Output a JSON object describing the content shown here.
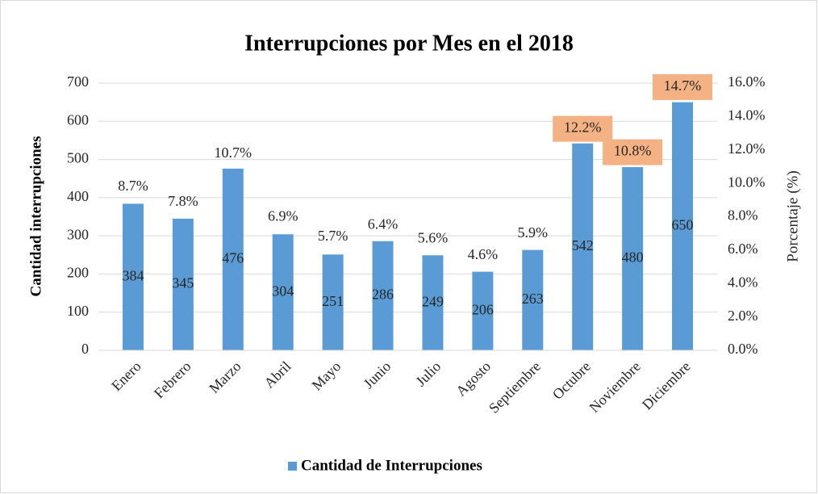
{
  "chart_data": {
    "type": "bar",
    "title": "Interrupciones por Mes en el 2018",
    "categories": [
      "Enero",
      "Febrero",
      "Marzo",
      "Abril",
      "Mayo",
      "Junio",
      "Julio",
      "Agosto",
      "Septiembre",
      "Octubre",
      "Noviembre",
      "Diciembre"
    ],
    "series": [
      {
        "name": "Cantidad de Interrupciones",
        "color": "#5b9bd5",
        "values": [
          384,
          345,
          476,
          304,
          251,
          286,
          249,
          206,
          263,
          542,
          480,
          650
        ]
      },
      {
        "axis": "y2",
        "values": [
          8.7,
          7.8,
          10.7,
          6.9,
          5.7,
          6.4,
          5.6,
          4.6,
          5.9,
          12.2,
          10.8,
          14.7
        ],
        "value_labels": [
          "8.7%",
          "7.8%",
          "10.7%",
          "6.9%",
          "5.7%",
          "6.4%",
          "5.6%",
          "4.6%",
          "5.9%",
          "12.2%",
          "10.8%",
          "14.7%"
        ],
        "highlight": [
          false,
          false,
          false,
          false,
          false,
          false,
          false,
          false,
          false,
          true,
          true,
          true
        ],
        "highlight_color": "#f4b183"
      }
    ],
    "ylabel": "Cantidad interrupciones",
    "y2label": "Porcentaje (%)",
    "ylim": [
      0,
      700
    ],
    "yticks": [
      0,
      100,
      200,
      300,
      400,
      500,
      600,
      700
    ],
    "y2lim": [
      0,
      16
    ],
    "y2ticks": [
      {
        "value": 0,
        "label": "0.0%"
      },
      {
        "value": 2,
        "label": "2.0%"
      },
      {
        "value": 4,
        "label": "4.0%"
      },
      {
        "value": 6,
        "label": "6.0%"
      },
      {
        "value": 8,
        "label": "8.0%"
      },
      {
        "value": 10,
        "label": "10.0%"
      },
      {
        "value": 12,
        "label": "12.0%"
      },
      {
        "value": 14,
        "label": "14.0%"
      },
      {
        "value": 16,
        "label": "16.0%"
      }
    ],
    "grid": true,
    "legend": "bottom"
  }
}
